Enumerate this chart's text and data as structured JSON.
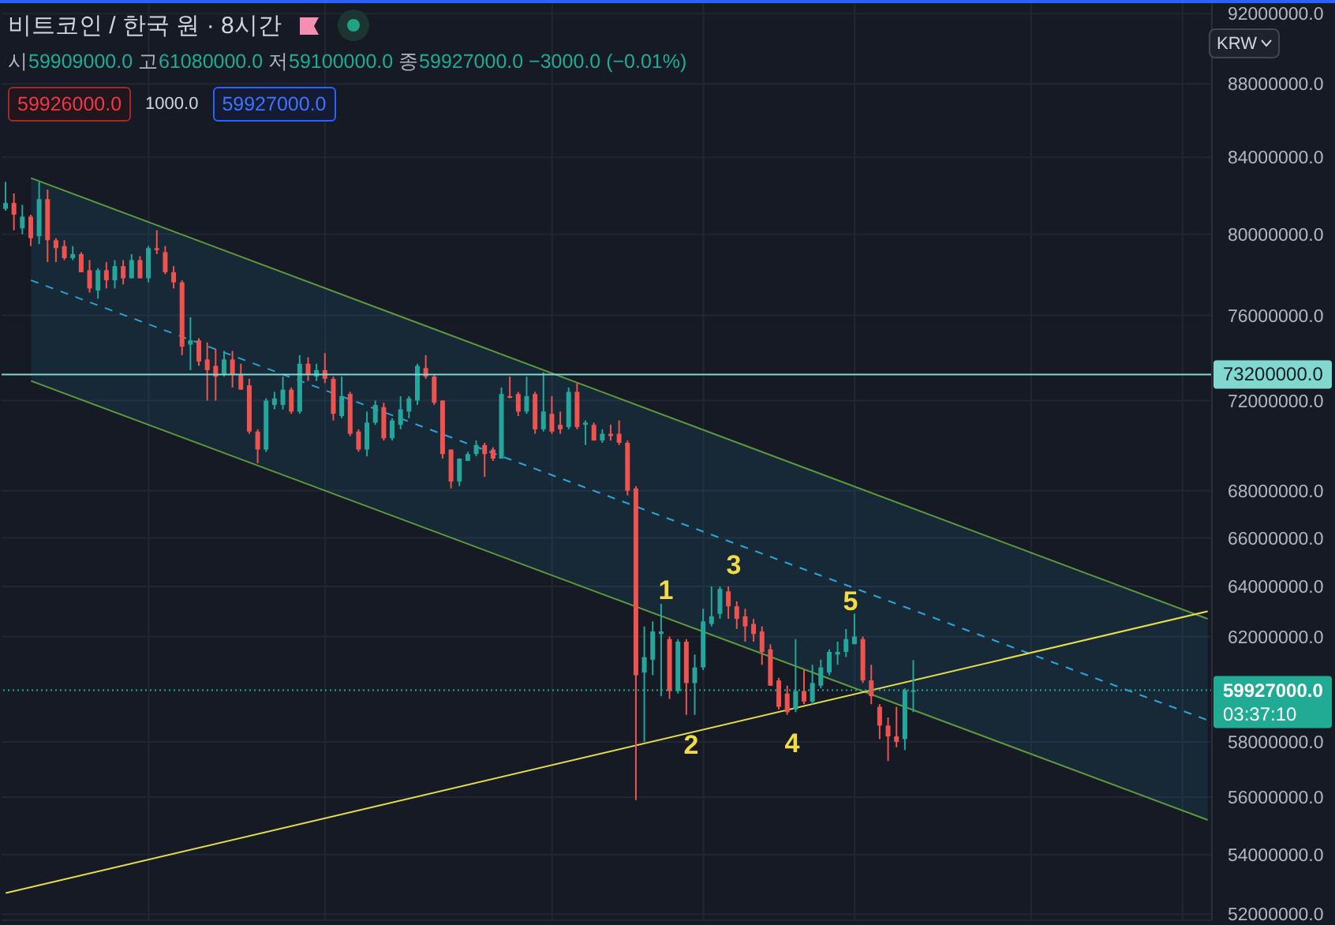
{
  "chart_data": {
    "type": "candlestick",
    "title": "비트코인 / 한국 원 · 8시간",
    "subtitle": "시59909000.0 고61080000.0 저59100000.0 종59927000.0 −3000.0 (−0.01%)",
    "categories": [
      null,
      null,
      null,
      null,
      null,
      null,
      null,
      null,
      null,
      null,
      null,
      null,
      null,
      null,
      null,
      null,
      null,
      null,
      null,
      null,
      null,
      null,
      null,
      null,
      null,
      null,
      null,
      null,
      null,
      null,
      null,
      null,
      null,
      null,
      null,
      null,
      null,
      null,
      null,
      null,
      null,
      null,
      null,
      null,
      null,
      null,
      null,
      null,
      null,
      null,
      null,
      null,
      null,
      null,
      null,
      null,
      null,
      null,
      null,
      null,
      null,
      null,
      null,
      null,
      null,
      null,
      null,
      null,
      null,
      null,
      null,
      null,
      null,
      null,
      null,
      null,
      null,
      null,
      null,
      null,
      null,
      null,
      null,
      null,
      null,
      null,
      null,
      null,
      null,
      null,
      null,
      null,
      null,
      null,
      null,
      null,
      null,
      null,
      null,
      null,
      null,
      null,
      null,
      null,
      null,
      null,
      null,
      null,
      null,
      null,
      null,
      null,
      null,
      null,
      null,
      null,
      null,
      null,
      null,
      null,
      null,
      null,
      null,
      null,
      null,
      null,
      null,
      null,
      null,
      null,
      null,
      null,
      null,
      null,
      null,
      null,
      null,
      null,
      null,
      null,
      null,
      null,
      null,
      null
    ],
    "ohlc": [
      [
        81300000,
        82700000,
        81200000,
        81600000
      ],
      [
        81600000,
        82100000,
        80200000,
        81000000
      ],
      [
        80300000,
        81500000,
        80000000,
        80900000
      ],
      [
        80900000,
        81000000,
        79400000,
        79800000
      ],
      [
        79900000,
        82700000,
        79500000,
        81800000
      ],
      [
        81800000,
        82300000,
        78600000,
        79700000
      ],
      [
        79700000,
        79800000,
        78600000,
        79300000
      ],
      [
        79400000,
        79700000,
        78700000,
        78800000
      ],
      [
        78800000,
        79400000,
        78700000,
        79000000
      ],
      [
        79000000,
        79100000,
        78100000,
        78100000
      ],
      [
        78200000,
        78700000,
        77100000,
        77300000
      ],
      [
        77200000,
        78300000,
        76800000,
        78200000
      ],
      [
        78200000,
        78600000,
        77300000,
        77700000
      ],
      [
        77700000,
        78700000,
        77300000,
        78400000
      ],
      [
        78400000,
        78700000,
        77500000,
        77800000
      ],
      [
        77800000,
        79000000,
        77800000,
        78700000
      ],
      [
        78700000,
        78900000,
        77800000,
        77800000
      ],
      [
        77800000,
        79400000,
        77600000,
        79300000
      ],
      [
        79300000,
        80200000,
        79000000,
        79200000
      ],
      [
        79100000,
        79400000,
        78000000,
        78100000
      ],
      [
        78100000,
        78400000,
        77300000,
        77600000
      ],
      [
        77600000,
        77700000,
        74100000,
        74500000
      ],
      [
        74600000,
        75900000,
        73400000,
        74800000
      ],
      [
        74800000,
        74900000,
        73600000,
        73800000
      ],
      [
        73900000,
        74700000,
        72000000,
        73400000
      ],
      [
        73600000,
        74400000,
        72000000,
        73100000
      ],
      [
        73200000,
        74300000,
        73100000,
        73900000
      ],
      [
        73900000,
        74300000,
        72600000,
        73200000
      ],
      [
        73200000,
        73700000,
        72500000,
        72500000
      ],
      [
        72700000,
        73000000,
        70500000,
        70600000
      ],
      [
        70600000,
        70700000,
        69200000,
        69800000
      ],
      [
        69800000,
        72100000,
        69700000,
        72000000
      ],
      [
        71800000,
        72400000,
        71600000,
        72100000
      ],
      [
        71800000,
        73100000,
        71600000,
        72500000
      ],
      [
        72500000,
        72600000,
        71400000,
        71500000
      ],
      [
        71500000,
        74100000,
        71400000,
        73700000
      ],
      [
        73700000,
        74000000,
        72900000,
        73200000
      ],
      [
        73100000,
        73700000,
        72900000,
        73400000
      ],
      [
        73400000,
        74200000,
        72800000,
        73000000
      ],
      [
        73000000,
        73100000,
        71100000,
        71400000
      ],
      [
        71300000,
        73100000,
        71200000,
        72200000
      ],
      [
        72300000,
        72400000,
        70400000,
        70500000
      ],
      [
        70600000,
        70700000,
        69700000,
        69800000
      ],
      [
        69800000,
        71500000,
        69500000,
        71000000
      ],
      [
        71000000,
        72000000,
        70900000,
        71800000
      ],
      [
        71700000,
        71900000,
        70200000,
        70300000
      ],
      [
        70300000,
        71200000,
        70200000,
        71100000
      ],
      [
        70900000,
        72200000,
        70700000,
        71600000
      ],
      [
        71500000,
        72200000,
        71200000,
        72100000
      ],
      [
        72000000,
        73700000,
        71800000,
        73600000
      ],
      [
        73500000,
        74100000,
        73000000,
        73100000
      ],
      [
        73100000,
        73200000,
        71800000,
        71900000
      ],
      [
        72000000,
        72000000,
        69400000,
        69600000
      ],
      [
        69800000,
        69800000,
        68100000,
        68400000
      ],
      [
        68400000,
        69400000,
        68200000,
        69400000
      ],
      [
        69300000,
        69700000,
        69300000,
        69600000
      ],
      [
        69600000,
        70200000,
        69500000,
        70000000
      ],
      [
        70000000,
        70100000,
        68600000,
        69600000
      ],
      [
        69800000,
        69900000,
        69300000,
        69400000
      ],
      [
        69400000,
        72600000,
        69400000,
        72300000
      ],
      [
        72200000,
        73100000,
        72100000,
        72200000
      ],
      [
        72300000,
        72400000,
        71300000,
        71500000
      ],
      [
        71500000,
        73100000,
        71400000,
        72200000
      ],
      [
        72300000,
        72400000,
        70500000,
        70700000
      ],
      [
        70700000,
        73300000,
        70600000,
        71500000
      ],
      [
        71400000,
        72200000,
        70500000,
        70600000
      ],
      [
        70900000,
        71500000,
        70500000,
        70700000
      ],
      [
        70800000,
        72600000,
        70700000,
        72400000
      ],
      [
        72400000,
        72800000,
        70700000,
        70800000
      ],
      [
        70900000,
        71100000,
        70000000,
        71000000
      ],
      [
        70900000,
        71000000,
        70200000,
        70200000
      ],
      [
        70200000,
        70700000,
        70100000,
        70500000
      ],
      [
        70500000,
        70900000,
        70200000,
        70400000
      ],
      [
        70500000,
        71100000,
        70000000,
        70100000
      ],
      [
        70100000,
        70200000,
        67800000,
        68000000
      ],
      [
        68100000,
        68200000,
        55900000,
        60500000
      ],
      [
        60600000,
        62400000,
        58000000,
        61200000
      ],
      [
        61100000,
        62600000,
        60500000,
        62200000
      ],
      [
        62100000,
        63300000,
        59700000,
        62200000
      ],
      [
        61900000,
        62000000,
        59600000,
        59900000
      ],
      [
        59900000,
        61900000,
        59800000,
        61800000
      ],
      [
        61800000,
        61900000,
        59000000,
        60200000
      ],
      [
        60200000,
        61300000,
        59000000,
        60800000
      ],
      [
        60800000,
        63100000,
        60700000,
        62600000
      ],
      [
        62500000,
        64000000,
        62400000,
        62800000
      ],
      [
        62900000,
        64000000,
        62700000,
        63900000
      ],
      [
        63800000,
        64000000,
        62700000,
        63200000
      ],
      [
        63200000,
        63400000,
        62300000,
        62700000
      ],
      [
        62800000,
        63100000,
        61800000,
        62400000
      ],
      [
        62500000,
        62700000,
        61800000,
        62100000
      ],
      [
        62200000,
        62400000,
        60900000,
        61400000
      ],
      [
        61500000,
        61700000,
        60100000,
        60100000
      ],
      [
        60300000,
        60400000,
        59200000,
        59300000
      ],
      [
        59800000,
        60100000,
        59000000,
        59100000
      ],
      [
        59200000,
        61900000,
        59100000,
        59900000
      ],
      [
        59900000,
        60700000,
        59400000,
        59500000
      ],
      [
        59500000,
        60900000,
        59400000,
        60200000
      ],
      [
        60100000,
        61100000,
        60000000,
        60800000
      ],
      [
        60600000,
        61500000,
        60500000,
        61400000
      ],
      [
        61300000,
        61800000,
        60900000,
        61400000
      ],
      [
        61400000,
        62300000,
        61200000,
        61900000
      ],
      [
        61700000,
        62900000,
        61700000,
        62000000
      ],
      [
        61900000,
        62000000,
        60200000,
        60300000
      ],
      [
        60300000,
        60900000,
        59400000,
        59700000
      ],
      [
        59300000,
        59400000,
        58100000,
        58600000
      ],
      [
        58600000,
        58900000,
        57300000,
        58200000
      ],
      [
        58200000,
        59300000,
        57800000,
        58000000
      ],
      [
        58100000,
        60000000,
        57700000,
        59930000
      ],
      [
        59909000,
        61080000,
        59100000,
        59927000
      ],
      null,
      null,
      null,
      null,
      null,
      null,
      null,
      null,
      null,
      null,
      null,
      null,
      null,
      null,
      null,
      null,
      null,
      null,
      null,
      null,
      null,
      null,
      null,
      null,
      null,
      null,
      null,
      null,
      null,
      null,
      null,
      null,
      null,
      null,
      null
    ],
    "colors": [
      "#26a69a",
      "#ef5350",
      "#26a69a",
      "#ef5350",
      "#26a69a",
      "#ef5350",
      "#ef5350",
      "#ef5350",
      "#26a69a",
      "#ef5350",
      "#ef5350",
      "#26a69a",
      "#ef5350",
      "#26a69a",
      "#ef5350",
      "#26a69a",
      "#ef5350",
      "#26a69a",
      "#ef5350",
      "#ef5350",
      "#ef5350",
      "#ef5350",
      "#26a69a",
      "#ef5350",
      "#ef5350",
      "#ef5350",
      "#26a69a",
      "#ef5350",
      "#ef5350",
      "#ef5350",
      "#ef5350",
      "#26a69a",
      "#26a69a",
      "#26a69a",
      "#ef5350",
      "#26a69a",
      "#ef5350",
      "#26a69a",
      "#ef5350",
      "#ef5350",
      "#26a69a",
      "#ef5350",
      "#ef5350",
      "#26a69a",
      "#26a69a",
      "#ef5350",
      "#26a69a",
      "#26a69a",
      "#26a69a",
      "#26a69a",
      "#ef5350",
      "#ef5350",
      "#ef5350",
      "#ef5350",
      "#26a69a",
      "#26a69a",
      "#26a69a",
      "#ef5350",
      "#ef5350",
      "#26a69a",
      "#ef5350",
      "#ef5350",
      "#26a69a",
      "#ef5350",
      "#26a69a",
      "#ef5350",
      "#ef5350",
      "#26a69a",
      "#ef5350",
      "#26a69a",
      "#ef5350",
      "#26a69a",
      "#ef5350",
      "#ef5350",
      "#ef5350",
      "#ef5350",
      "#26a69a",
      "#26a69a",
      "#26a69a",
      "#ef5350",
      "#26a69a",
      "#ef5350",
      "#26a69a",
      "#26a69a",
      "#26a69a",
      "#26a69a",
      "#ef5350",
      "#ef5350",
      "#ef5350",
      "#ef5350",
      "#ef5350",
      "#ef5350",
      "#ef5350",
      "#ef5350",
      "#26a69a",
      "#ef5350",
      "#26a69a",
      "#26a69a",
      "#26a69a",
      "#26a69a",
      "#26a69a",
      "#26a69a",
      "#ef5350",
      "#ef5350",
      "#ef5350",
      "#ef5350",
      "#ef5350",
      "#26a69a",
      "#26a69a",
      null,
      null,
      null,
      null,
      null,
      null,
      null,
      null,
      null,
      null,
      null,
      null,
      null,
      null,
      null,
      null,
      null,
      null,
      null,
      null,
      null,
      null,
      null,
      null,
      null,
      null,
      null,
      null,
      null,
      null,
      null,
      null,
      null,
      null,
      null
    ],
    "series": [
      {
        "type": "line",
        "color": "#5b9b3c",
        "values": [
          null,
          null,
          null,
          82900000,
          null,
          null,
          null,
          null,
          null,
          null,
          null,
          null,
          null,
          null,
          null,
          null,
          null,
          null,
          null,
          null,
          null,
          null,
          null,
          null,
          null,
          null,
          null,
          null,
          null,
          null,
          null,
          null,
          null,
          null,
          null,
          null,
          null,
          null,
          null,
          null,
          null,
          null,
          null,
          null,
          null,
          null,
          null,
          null,
          null,
          null,
          null,
          null,
          null,
          null,
          null,
          null,
          null,
          null,
          null,
          null,
          null,
          null,
          null,
          null,
          null,
          null,
          null,
          null,
          null,
          null,
          null,
          null,
          null,
          null,
          null,
          null,
          null,
          null,
          null,
          null,
          null,
          null,
          null,
          null,
          null,
          null,
          null,
          null,
          null,
          null,
          null,
          null,
          null,
          null,
          null,
          null,
          null,
          null,
          null,
          null,
          null,
          null,
          null,
          null,
          null,
          null,
          null,
          null,
          null,
          null,
          null,
          null,
          null,
          null,
          null,
          null,
          null,
          null,
          null,
          null,
          null,
          null,
          null,
          null,
          null,
          null,
          null,
          null,
          null,
          null,
          null,
          null,
          null,
          null,
          null,
          null,
          null,
          null,
          null,
          null,
          null,
          null,
          null,
          62700000
        ]
      },
      {
        "type": "line",
        "color": "#2aa3d6",
        "line_style": "dashed",
        "values": [
          null,
          null,
          null,
          77700000,
          null,
          null,
          null,
          null,
          null,
          null,
          null,
          null,
          null,
          null,
          null,
          null,
          null,
          null,
          null,
          null,
          null,
          null,
          null,
          null,
          null,
          null,
          null,
          null,
          null,
          null,
          null,
          null,
          null,
          null,
          null,
          null,
          null,
          null,
          null,
          null,
          null,
          null,
          null,
          null,
          null,
          null,
          null,
          null,
          null,
          null,
          null,
          null,
          null,
          null,
          null,
          null,
          null,
          null,
          null,
          null,
          null,
          null,
          null,
          null,
          null,
          null,
          null,
          null,
          null,
          null,
          null,
          null,
          null,
          null,
          null,
          null,
          null,
          null,
          null,
          null,
          null,
          null,
          null,
          null,
          null,
          null,
          null,
          null,
          null,
          null,
          null,
          null,
          null,
          null,
          null,
          null,
          null,
          null,
          null,
          null,
          null,
          null,
          null,
          null,
          null,
          null,
          null,
          null,
          null,
          null,
          null,
          null,
          null,
          null,
          null,
          null,
          null,
          null,
          null,
          null,
          null,
          null,
          null,
          null,
          null,
          null,
          null,
          null,
          null,
          null,
          null,
          null,
          null,
          null,
          null,
          null,
          null,
          null,
          null,
          null,
          null,
          null,
          null,
          58800000
        ],
        "lower": [
          null,
          null,
          null,
          72900000,
          null,
          null,
          null,
          null,
          null,
          null,
          null,
          null,
          null,
          null,
          null,
          null,
          null,
          null,
          null,
          null,
          null,
          null,
          null,
          null,
          null,
          null,
          null,
          null,
          null,
          null,
          null,
          null,
          null,
          null,
          null,
          null,
          null,
          null,
          null,
          null,
          null,
          null,
          null,
          null,
          null,
          null,
          null,
          null,
          null,
          null,
          null,
          null,
          null,
          null,
          null,
          null,
          null,
          null,
          null,
          null,
          null,
          null,
          null,
          null,
          null,
          null,
          null,
          null,
          null,
          null,
          null,
          null,
          null,
          null,
          null,
          null,
          null,
          null,
          null,
          null,
          null,
          null,
          null,
          null,
          null,
          null,
          null,
          null,
          null,
          null,
          null,
          null,
          null,
          null,
          null,
          null,
          null,
          null,
          null,
          null,
          null,
          null,
          null,
          null,
          null,
          null,
          null,
          null,
          null,
          null,
          null,
          null,
          null,
          null,
          null,
          null,
          null,
          null,
          null,
          null,
          null,
          null,
          null,
          null,
          null,
          null,
          null,
          null,
          null,
          null,
          null,
          null,
          null,
          null,
          null,
          null,
          null,
          null,
          null,
          null,
          null,
          null,
          null,
          55200000
        ],
        "upper": [
          null,
          null,
          null,
          82900000,
          null,
          null,
          null,
          null,
          null,
          null,
          null,
          null,
          null,
          null,
          null,
          null,
          null,
          null,
          null,
          null,
          null,
          null,
          null,
          null,
          null,
          null,
          null,
          null,
          null,
          null,
          null,
          null,
          null,
          null,
          null,
          null,
          null,
          null,
          null,
          null,
          null,
          null,
          null,
          null,
          null,
          null,
          null,
          null,
          null,
          null,
          null,
          null,
          null,
          null,
          null,
          null,
          null,
          null,
          null,
          null,
          null,
          null,
          null,
          null,
          null,
          null,
          null,
          null,
          null,
          null,
          null,
          null,
          null,
          null,
          null,
          null,
          null,
          null,
          null,
          null,
          null,
          null,
          null,
          null,
          null,
          null,
          null,
          null,
          null,
          null,
          null,
          null,
          null,
          null,
          null,
          null,
          null,
          null,
          null,
          null,
          null,
          null,
          null,
          null,
          null,
          null,
          null,
          null,
          null,
          null,
          null,
          null,
          null,
          null,
          null,
          null,
          null,
          null,
          null,
          null,
          null,
          null,
          null,
          null,
          null,
          null,
          null,
          null,
          null,
          null,
          null,
          null,
          null,
          null,
          null,
          null,
          null,
          null,
          null,
          null,
          null,
          null,
          null,
          62700000
        ]
      },
      {
        "type": "line",
        "color": "#5b9b3c",
        "values": [
          null,
          null,
          null,
          72900000,
          null,
          null,
          null,
          null,
          null,
          null,
          null,
          null,
          null,
          null,
          null,
          null,
          null,
          null,
          null,
          null,
          null,
          null,
          null,
          null,
          null,
          null,
          null,
          null,
          null,
          null,
          null,
          null,
          null,
          null,
          null,
          null,
          null,
          null,
          null,
          null,
          null,
          null,
          null,
          null,
          null,
          null,
          null,
          null,
          null,
          null,
          null,
          null,
          null,
          null,
          null,
          null,
          null,
          null,
          null,
          null,
          null,
          null,
          null,
          null,
          null,
          null,
          null,
          null,
          null,
          null,
          null,
          null,
          null,
          null,
          null,
          null,
          null,
          null,
          null,
          null,
          null,
          null,
          null,
          null,
          null,
          null,
          null,
          null,
          null,
          null,
          null,
          null,
          null,
          null,
          null,
          null,
          null,
          null,
          null,
          null,
          null,
          null,
          null,
          null,
          null,
          null,
          null,
          null,
          null,
          null,
          null,
          null,
          null,
          null,
          null,
          null,
          null,
          null,
          null,
          null,
          null,
          null,
          null,
          null,
          null,
          null,
          null,
          null,
          null,
          null,
          null,
          null,
          null,
          null,
          null,
          null,
          null,
          null,
          null,
          null,
          null,
          null,
          null,
          55200000
        ]
      },
      {
        "type": "line",
        "color": "#e3dd4c",
        "values": [
          52700000,
          null,
          null,
          null,
          null,
          null,
          null,
          null,
          null,
          null,
          null,
          null,
          null,
          null,
          null,
          null,
          null,
          null,
          null,
          null,
          null,
          null,
          null,
          null,
          null,
          null,
          null,
          null,
          null,
          null,
          null,
          null,
          null,
          null,
          null,
          null,
          null,
          null,
          null,
          null,
          null,
          null,
          null,
          null,
          null,
          null,
          null,
          null,
          null,
          null,
          null,
          null,
          null,
          null,
          null,
          null,
          null,
          null,
          null,
          null,
          null,
          null,
          null,
          null,
          null,
          null,
          null,
          null,
          null,
          null,
          null,
          null,
          null,
          null,
          null,
          null,
          null,
          null,
          null,
          null,
          null,
          null,
          null,
          null,
          null,
          null,
          null,
          null,
          null,
          null,
          null,
          null,
          null,
          null,
          null,
          null,
          null,
          null,
          null,
          null,
          null,
          null,
          null,
          null,
          null,
          null,
          null,
          null,
          null,
          null,
          null,
          null,
          null,
          null,
          null,
          null,
          null,
          null,
          null,
          null,
          null,
          null,
          null,
          null,
          null,
          null,
          null,
          null,
          null,
          null,
          null,
          null,
          null,
          null,
          null,
          null,
          null,
          null,
          null,
          null,
          null,
          null,
          null,
          63000000
        ]
      }
    ],
    "ylim": [
      51800000,
      92800000
    ],
    "yticks": [
      {
        "value": 92000000,
        "label": "92000000.0"
      },
      {
        "value": 88000000,
        "label": "88000000.0"
      },
      {
        "value": 84000000,
        "label": "84000000.0"
      },
      {
        "value": 80000000,
        "label": "80000000.0"
      },
      {
        "value": 76000000,
        "label": "76000000.0"
      },
      {
        "value": 72000000,
        "label": "72000000.0"
      },
      {
        "value": 68000000,
        "label": "68000000.0"
      },
      {
        "value": 66000000,
        "label": "66000000.0"
      },
      {
        "value": 64000000,
        "label": "64000000.0"
      },
      {
        "value": 62000000,
        "label": "62000000.0"
      },
      {
        "value": 58000000,
        "label": "58000000.0"
      },
      {
        "value": 56000000,
        "label": "56000000.0"
      },
      {
        "value": 54000000,
        "label": "54000000.0"
      },
      {
        "value": 52000000,
        "label": "52000000.0"
      }
    ],
    "log": true,
    "grid": true,
    "tick_labels": "y",
    "ref_lines": [
      {
        "axis": "y",
        "value": 73200000,
        "label": "73200000.0",
        "color": "#80d8cf"
      },
      {
        "axis": "y",
        "value": 59927000,
        "label": "59927000.0",
        "color": "#22ab94",
        "line_style": "dotted"
      }
    ],
    "annotations": [
      "59926000.0",
      "1000.0",
      "59927000.0",
      "03:37:10",
      "KRW",
      "1",
      "2",
      "3",
      "4",
      "5"
    ]
  }
}
